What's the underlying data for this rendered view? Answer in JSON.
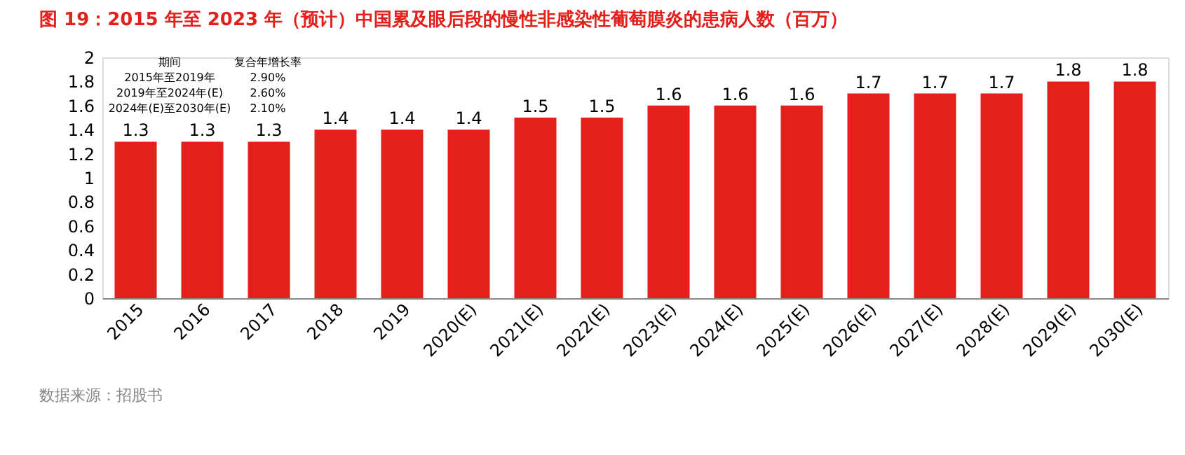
{
  "chart_data": {
    "type": "bar",
    "title": "图 19：2015 年至 2023 年（预计）中国累及眼后段的慢性非感染性葡萄膜炎的患病人数（百万）",
    "categories": [
      "2015",
      "2016",
      "2017",
      "2018",
      "2019",
      "2020(E)",
      "2021(E)",
      "2022(E)",
      "2023(E)",
      "2024(E)",
      "2025(E)",
      "2026(E)",
      "2027(E)",
      "2028(E)",
      "2029(E)",
      "2030(E)"
    ],
    "values": [
      1.3,
      1.3,
      1.3,
      1.4,
      1.4,
      1.4,
      1.5,
      1.5,
      1.6,
      1.6,
      1.6,
      1.7,
      1.7,
      1.7,
      1.8,
      1.8
    ],
    "color": "#e3201b",
    "data_labels": true,
    "grid": false,
    "ylim": [
      0,
      2
    ],
    "yticks": [
      0,
      0.2,
      0.4,
      0.6,
      0.8,
      1,
      1.2,
      1.4,
      1.6,
      1.8,
      2
    ],
    "annotations": [
      "期间",
      "复合年增长率",
      "2015年至2019年",
      "2.90%",
      "2019年至2024年(E)",
      "2.60%",
      "2024年(E)至2030年(E)",
      "2.10%",
      "数据来源：招股书"
    ]
  }
}
